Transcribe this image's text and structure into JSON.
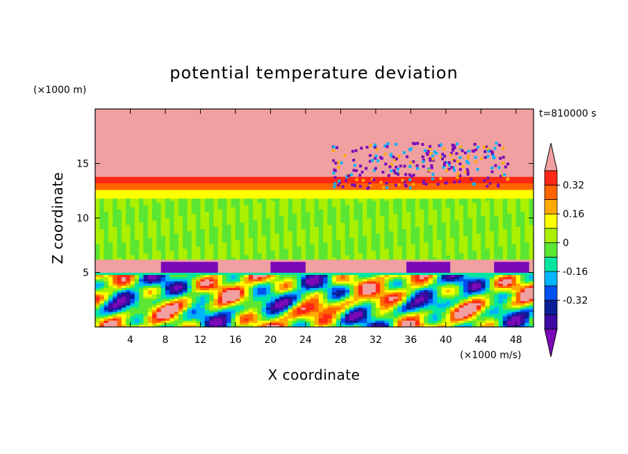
{
  "chart_data": {
    "type": "heatmap",
    "title": "potential temperature deviation",
    "xlabel": "X coordinate",
    "ylabel": "Z coordinate",
    "x_unit": "(×1000 m/s)",
    "y_unit": "(×1000 m)",
    "time_label": "t=810000 s",
    "xlim": [
      0,
      50
    ],
    "ylim": [
      0,
      20
    ],
    "x_ticks": [
      4,
      8,
      12,
      16,
      20,
      24,
      28,
      32,
      36,
      40,
      44,
      48
    ],
    "y_ticks": [
      5,
      10,
      15
    ],
    "colorbar": {
      "levels": [
        -0.48,
        -0.4,
        -0.32,
        -0.24,
        -0.16,
        -0.08,
        0,
        0.08,
        0.16,
        0.24,
        0.32,
        0.4,
        0.48
      ],
      "tick_labels": [
        "-0.32",
        "-0.16",
        "0",
        "0.16",
        "0.32"
      ],
      "tick_values": [
        -0.32,
        -0.16,
        0,
        0.16,
        0.32
      ],
      "colors": [
        "#7a0ab8",
        "#3c0aa0",
        "#0a1e96",
        "#0050f0",
        "#00b4ff",
        "#00e6a0",
        "#5ae632",
        "#aaf000",
        "#ffff00",
        "#ffaa00",
        "#ff6400",
        "#ff2814",
        "#f0a0a0"
      ]
    },
    "bands": [
      {
        "z": [
          0,
          4.9
        ],
        "pattern": "turbulent mixed, values from -0.48 to 0.48"
      },
      {
        "z": [
          4.9,
          5.1
        ],
        "value": -0.1
      },
      {
        "z": [
          5.1,
          6.2
        ],
        "value": 0.5,
        "with_negative_domes": true
      },
      {
        "z": [
          6.2,
          11.8
        ],
        "value": 0.0,
        "pattern": "striated near zero"
      },
      {
        "z": [
          11.8,
          12.6
        ],
        "value": 0.12
      },
      {
        "z": [
          12.6,
          13.2
        ],
        "value": 0.26
      },
      {
        "z": [
          13.2,
          13.8
        ],
        "value": 0.38
      },
      {
        "z": [
          13.8,
          20
        ],
        "value": 0.5,
        "pattern": "with irregular large negative patches (-0.48)"
      }
    ]
  }
}
